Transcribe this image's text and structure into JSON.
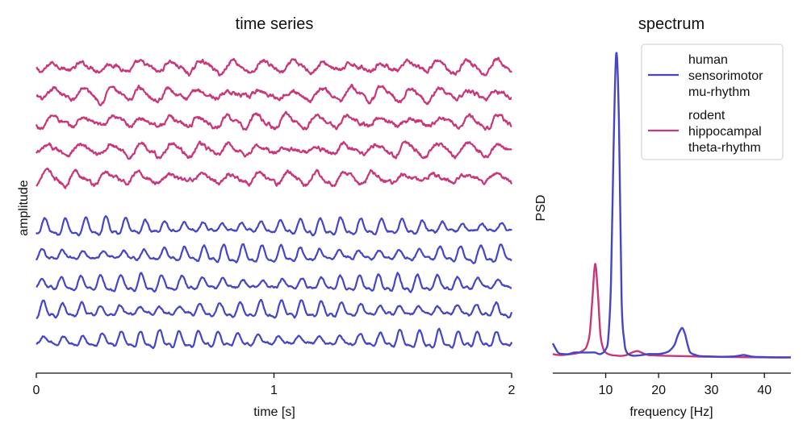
{
  "colors": {
    "mu": "#4646c4",
    "theta": "#c8377a",
    "axis": "#111111",
    "background": "#ffffff"
  },
  "chart_data": [
    {
      "type": "line",
      "title": "time series",
      "xlabel": "time [s]",
      "ylabel": "amplitude",
      "xlim": [
        0,
        2
      ],
      "xticks": [
        0,
        1,
        2
      ],
      "yticks_shown": false,
      "grid": false,
      "series": [
        {
          "group": "theta",
          "color": "#c8377a",
          "frequency_hz": 8,
          "traces": 5
        },
        {
          "group": "mu",
          "color": "#4646c4",
          "frequency_hz": 12,
          "traces": 5
        }
      ]
    },
    {
      "type": "line",
      "title": "spectrum",
      "xlabel": "frequency [Hz]",
      "ylabel": "PSD",
      "xlim": [
        0,
        45
      ],
      "xticks": [
        10,
        20,
        30,
        40
      ],
      "yticks_shown": false,
      "grid": false,
      "legend": {
        "placement": "top-right",
        "entries": [
          {
            "lines": [
              "human",
              "sensorimotor",
              "mu-rhythm"
            ],
            "color": "#4646c4"
          },
          {
            "lines": [
              "rodent",
              "hippocampal",
              "theta-rhythm"
            ],
            "color": "#c8377a"
          }
        ]
      },
      "series": [
        {
          "group": "mu",
          "color": "#4646c4",
          "x": [
            0,
            1,
            2,
            3,
            4,
            5,
            6,
            7,
            8,
            9,
            10,
            10.5,
            11,
            11.5,
            12,
            12.5,
            13,
            13.5,
            14,
            15,
            16,
            17,
            18,
            19,
            20,
            21,
            22,
            23,
            23.5,
            24,
            24.5,
            25,
            25.5,
            26,
            27,
            28,
            30,
            32,
            34,
            35,
            36,
            36.5,
            37,
            38,
            40,
            42,
            45
          ],
          "y": [
            0.05,
            0.02,
            0.015,
            0.015,
            0.02,
            0.02,
            0.02,
            0.02,
            0.02,
            0.015,
            0.03,
            0.07,
            0.25,
            0.7,
            1.0,
            0.78,
            0.2,
            0.06,
            0.02,
            0.01,
            0.01,
            0.012,
            0.015,
            0.015,
            0.015,
            0.018,
            0.025,
            0.045,
            0.07,
            0.09,
            0.1,
            0.08,
            0.045,
            0.02,
            0.012,
            0.008,
            0.007,
            0.006,
            0.007,
            0.009,
            0.012,
            0.011,
            0.009,
            0.006,
            0.005,
            0.004,
            0.004
          ]
        },
        {
          "group": "theta",
          "color": "#c8377a",
          "x": [
            0,
            1,
            2,
            3,
            4,
            5,
            6,
            6.5,
            7,
            7.5,
            8,
            8.5,
            9,
            9.5,
            10,
            11,
            12,
            13,
            14,
            15,
            16,
            17,
            18,
            20,
            22,
            25,
            30,
            35,
            40,
            45
          ],
          "y": [
            0.015,
            0.012,
            0.012,
            0.014,
            0.016,
            0.02,
            0.03,
            0.045,
            0.085,
            0.2,
            0.31,
            0.22,
            0.08,
            0.035,
            0.02,
            0.012,
            0.01,
            0.009,
            0.012,
            0.02,
            0.025,
            0.018,
            0.012,
            0.01,
            0.009,
            0.008,
            0.006,
            0.005,
            0.004,
            0.004
          ]
        }
      ]
    }
  ]
}
